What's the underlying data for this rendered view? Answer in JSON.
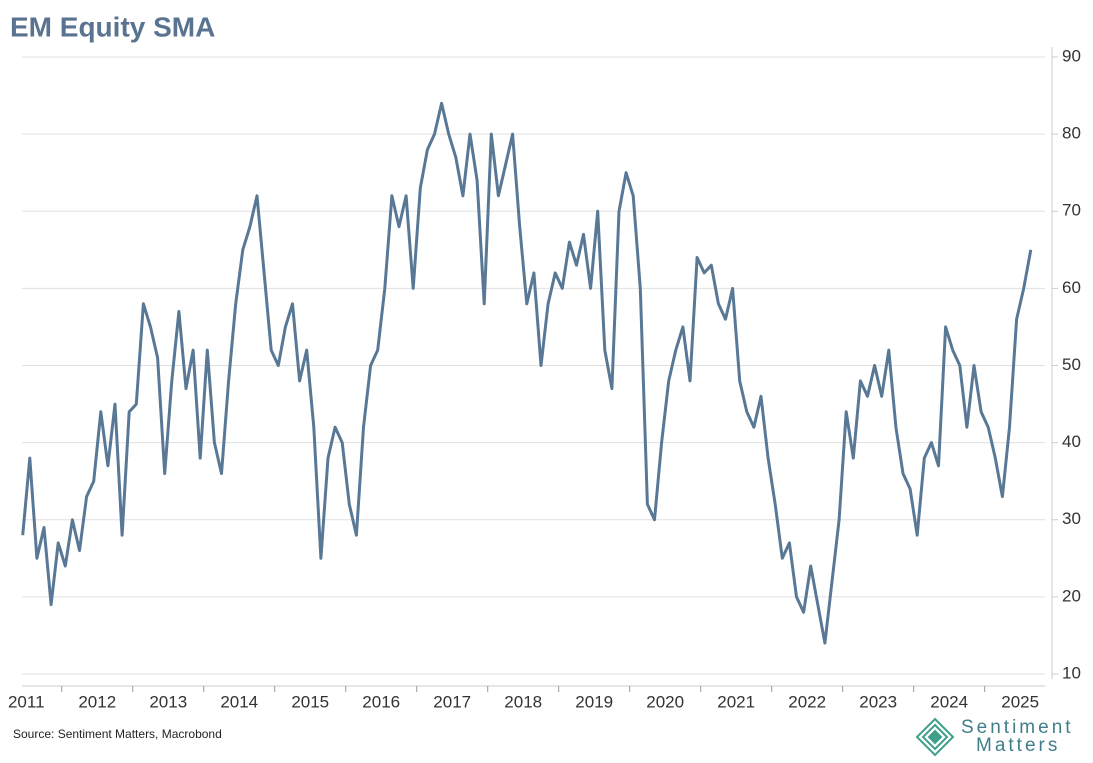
{
  "chart_data": {
    "type": "line",
    "title": "EM Equity SMA",
    "source": "Source: Sentiment Matters, Macrobond",
    "x": [
      2011.45,
      2011.55,
      2011.65,
      2011.75,
      2011.85,
      2011.95,
      2012.05,
      2012.15,
      2012.25,
      2012.35,
      2012.45,
      2012.55,
      2012.65,
      2012.75,
      2012.85,
      2012.95,
      2013.05,
      2013.15,
      2013.25,
      2013.35,
      2013.45,
      2013.55,
      2013.65,
      2013.75,
      2013.85,
      2013.95,
      2014.05,
      2014.15,
      2014.25,
      2014.35,
      2014.45,
      2014.55,
      2014.65,
      2014.75,
      2014.85,
      2014.95,
      2015.05,
      2015.15,
      2015.25,
      2015.35,
      2015.45,
      2015.55,
      2015.65,
      2015.75,
      2015.85,
      2015.95,
      2016.05,
      2016.15,
      2016.25,
      2016.35,
      2016.45,
      2016.55,
      2016.65,
      2016.75,
      2016.85,
      2016.95,
      2017.05,
      2017.15,
      2017.25,
      2017.35,
      2017.45,
      2017.55,
      2017.65,
      2017.75,
      2017.85,
      2017.95,
      2018.05,
      2018.15,
      2018.25,
      2018.35,
      2018.45,
      2018.55,
      2018.65,
      2018.75,
      2018.85,
      2018.95,
      2019.05,
      2019.15,
      2019.25,
      2019.35,
      2019.45,
      2019.55,
      2019.65,
      2019.75,
      2019.85,
      2019.95,
      2020.05,
      2020.15,
      2020.25,
      2020.35,
      2020.45,
      2020.55,
      2020.65,
      2020.75,
      2020.85,
      2020.95,
      2021.05,
      2021.15,
      2021.25,
      2021.35,
      2021.45,
      2021.55,
      2021.65,
      2021.75,
      2021.85,
      2021.95,
      2022.05,
      2022.15,
      2022.25,
      2022.35,
      2022.45,
      2022.55,
      2022.65,
      2022.75,
      2022.85,
      2022.95,
      2023.05,
      2023.15,
      2023.25,
      2023.35,
      2023.45,
      2023.55,
      2023.65,
      2023.75,
      2023.85,
      2023.95,
      2024.05,
      2024.15,
      2024.25,
      2024.35,
      2024.45,
      2024.55,
      2024.65,
      2024.75,
      2024.85,
      2024.95,
      2025.05,
      2025.15,
      2025.25,
      2025.35,
      2025.45,
      2025.55,
      2025.65
    ],
    "series": [
      {
        "color": "#587896",
        "values": [
          28,
          38,
          25,
          29,
          19,
          27,
          24,
          30,
          26,
          33,
          35,
          44,
          37,
          45,
          28,
          44,
          45,
          58,
          55,
          51,
          36,
          48,
          57,
          47,
          52,
          38,
          52,
          40,
          36,
          48,
          58,
          65,
          68,
          72,
          62,
          52,
          50,
          55,
          58,
          48,
          52,
          42,
          25,
          38,
          42,
          40,
          32,
          28,
          42,
          50,
          52,
          60,
          72,
          68,
          72,
          60,
          73,
          78,
          80,
          84,
          80,
          77,
          72,
          80,
          74,
          58,
          80,
          72,
          76,
          80,
          68,
          58,
          62,
          50,
          58,
          62,
          60,
          66,
          63,
          67,
          60,
          70,
          52,
          47,
          70,
          75,
          72,
          60,
          32,
          30,
          40,
          48,
          52,
          55,
          48,
          64,
          62,
          63,
          58,
          56,
          60,
          48,
          44,
          42,
          46,
          38,
          32,
          25,
          27,
          20,
          18,
          24,
          19,
          14,
          22,
          30,
          44,
          38,
          48,
          46,
          50,
          46,
          52,
          42,
          36,
          34,
          28,
          38,
          40,
          37,
          55,
          52,
          50,
          42,
          50,
          44,
          42,
          38,
          33,
          42,
          56,
          60,
          65
        ]
      }
    ],
    "xlim": [
      2011.44,
      2025.85
    ],
    "xticks": [
      {
        "value": 2011.5,
        "label": "2011"
      },
      {
        "value": 2012.5,
        "label": "2012"
      },
      {
        "value": 2013.5,
        "label": "2013"
      },
      {
        "value": 2014.5,
        "label": "2014"
      },
      {
        "value": 2015.5,
        "label": "2015"
      },
      {
        "value": 2016.5,
        "label": "2016"
      },
      {
        "value": 2017.5,
        "label": "2017"
      },
      {
        "value": 2018.5,
        "label": "2018"
      },
      {
        "value": 2019.5,
        "label": "2019"
      },
      {
        "value": 2020.5,
        "label": "2020"
      },
      {
        "value": 2021.5,
        "label": "2021"
      },
      {
        "value": 2022.5,
        "label": "2022"
      },
      {
        "value": 2023.5,
        "label": "2023"
      },
      {
        "value": 2024.5,
        "label": "2024"
      },
      {
        "value": 2025.5,
        "label": "2025"
      }
    ],
    "ylim": [
      10,
      90
    ],
    "yticks": [
      10,
      20,
      30,
      40,
      50,
      60,
      70,
      80,
      90
    ],
    "grid": true
  },
  "logo": {
    "line1": "Sentiment",
    "line2": "Matters"
  }
}
